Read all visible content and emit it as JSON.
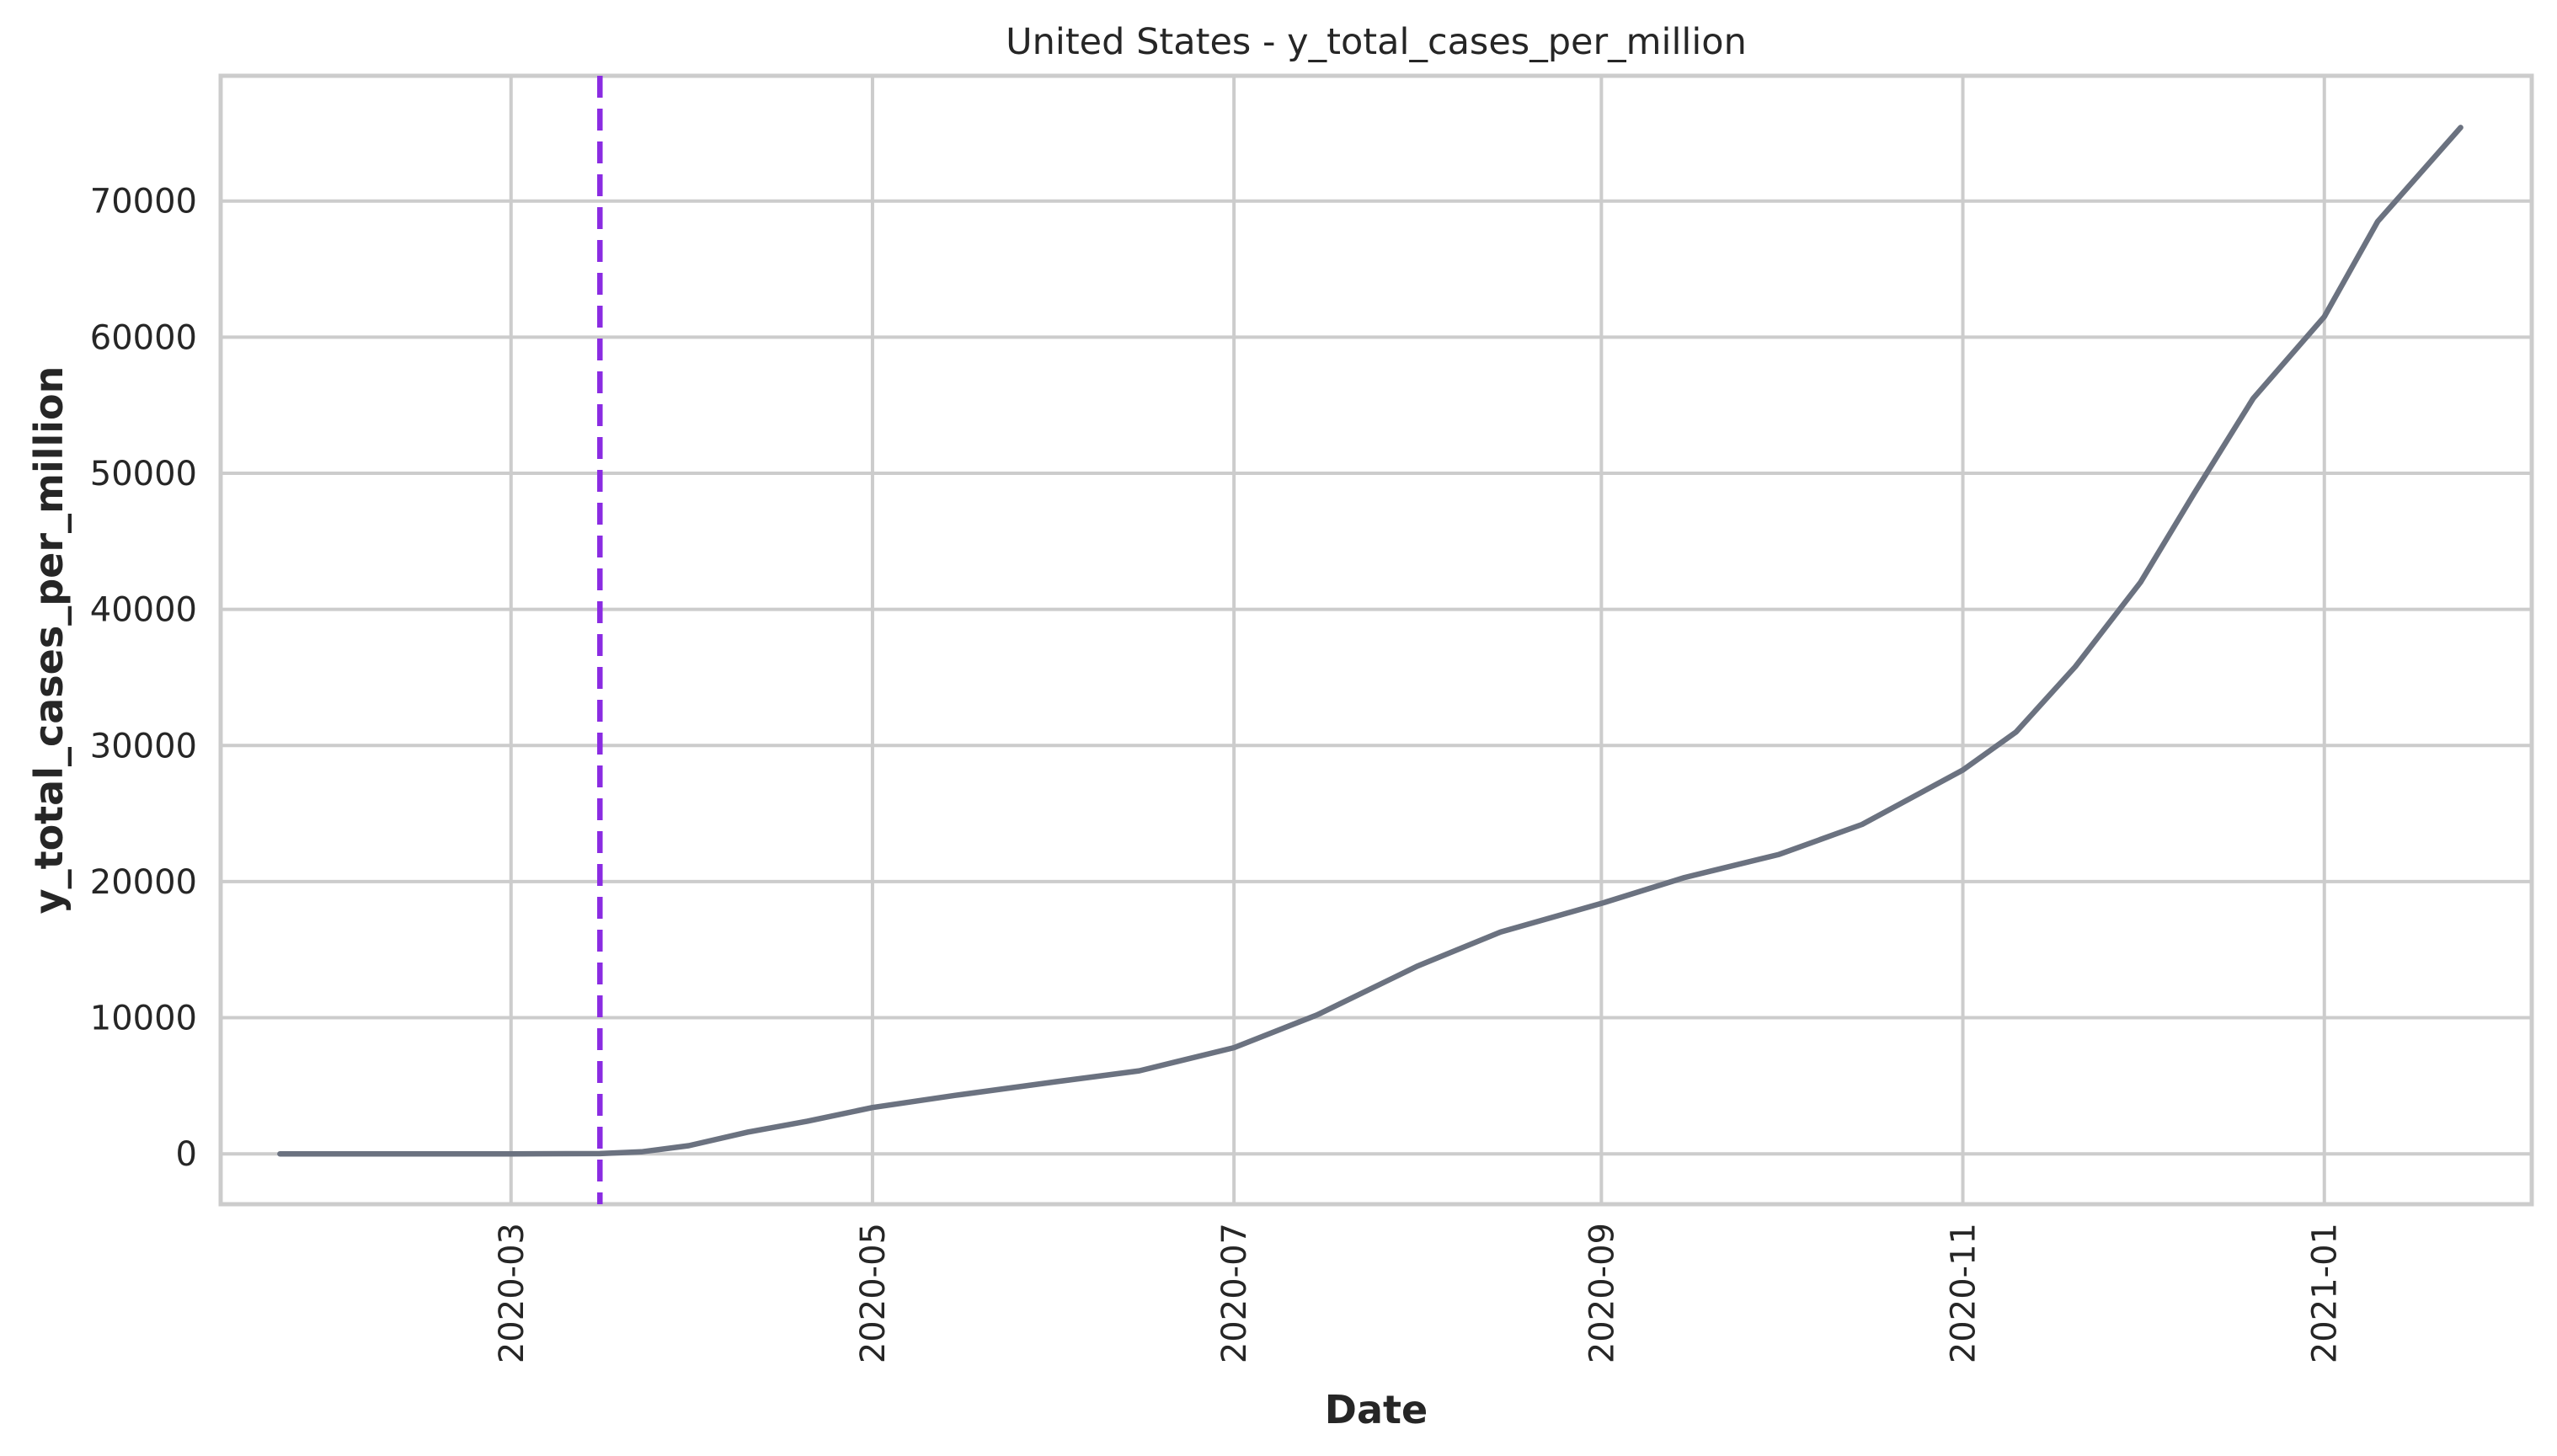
{
  "chart_data": {
    "type": "line",
    "title": "United States - y_total_cases_per_million",
    "xlabel": "Date",
    "ylabel": "y_total_cases_per_million",
    "x_range": [
      "2020-01-12",
      "2021-02-05"
    ],
    "ylim": [
      -3700,
      79200
    ],
    "grid": true,
    "x_ticks": [
      "2020-03",
      "2020-05",
      "2020-07",
      "2020-09",
      "2020-11",
      "2021-01"
    ],
    "y_ticks": [
      0,
      10000,
      20000,
      30000,
      40000,
      50000,
      60000,
      70000
    ],
    "colors": {
      "series": "#6b7280",
      "event_line": "#8a2be2"
    },
    "event_line": {
      "x": "2020-03-16",
      "style": "dashed"
    },
    "series": [
      {
        "x": [
          "2020-01-22",
          "2020-02-15",
          "2020-03-01",
          "2020-03-16",
          "2020-03-23",
          "2020-03-31",
          "2020-04-10",
          "2020-04-20",
          "2020-05-01",
          "2020-05-15",
          "2020-06-01",
          "2020-06-15",
          "2020-07-01",
          "2020-07-15",
          "2020-08-01",
          "2020-08-15",
          "2020-09-01",
          "2020-09-15",
          "2020-10-01",
          "2020-10-15",
          "2020-11-01",
          "2020-11-10",
          "2020-11-20",
          "2020-12-01",
          "2020-12-10",
          "2020-12-20",
          "2021-01-01",
          "2021-01-10",
          "2021-01-24"
        ],
        "y": [
          0,
          0,
          0,
          20,
          150,
          600,
          1600,
          2400,
          3400,
          4300,
          5300,
          6100,
          7800,
          10200,
          13800,
          16300,
          18400,
          20300,
          22000,
          24200,
          28200,
          31000,
          35800,
          42000,
          48500,
          55500,
          61500,
          68500,
          75400
        ]
      }
    ]
  }
}
